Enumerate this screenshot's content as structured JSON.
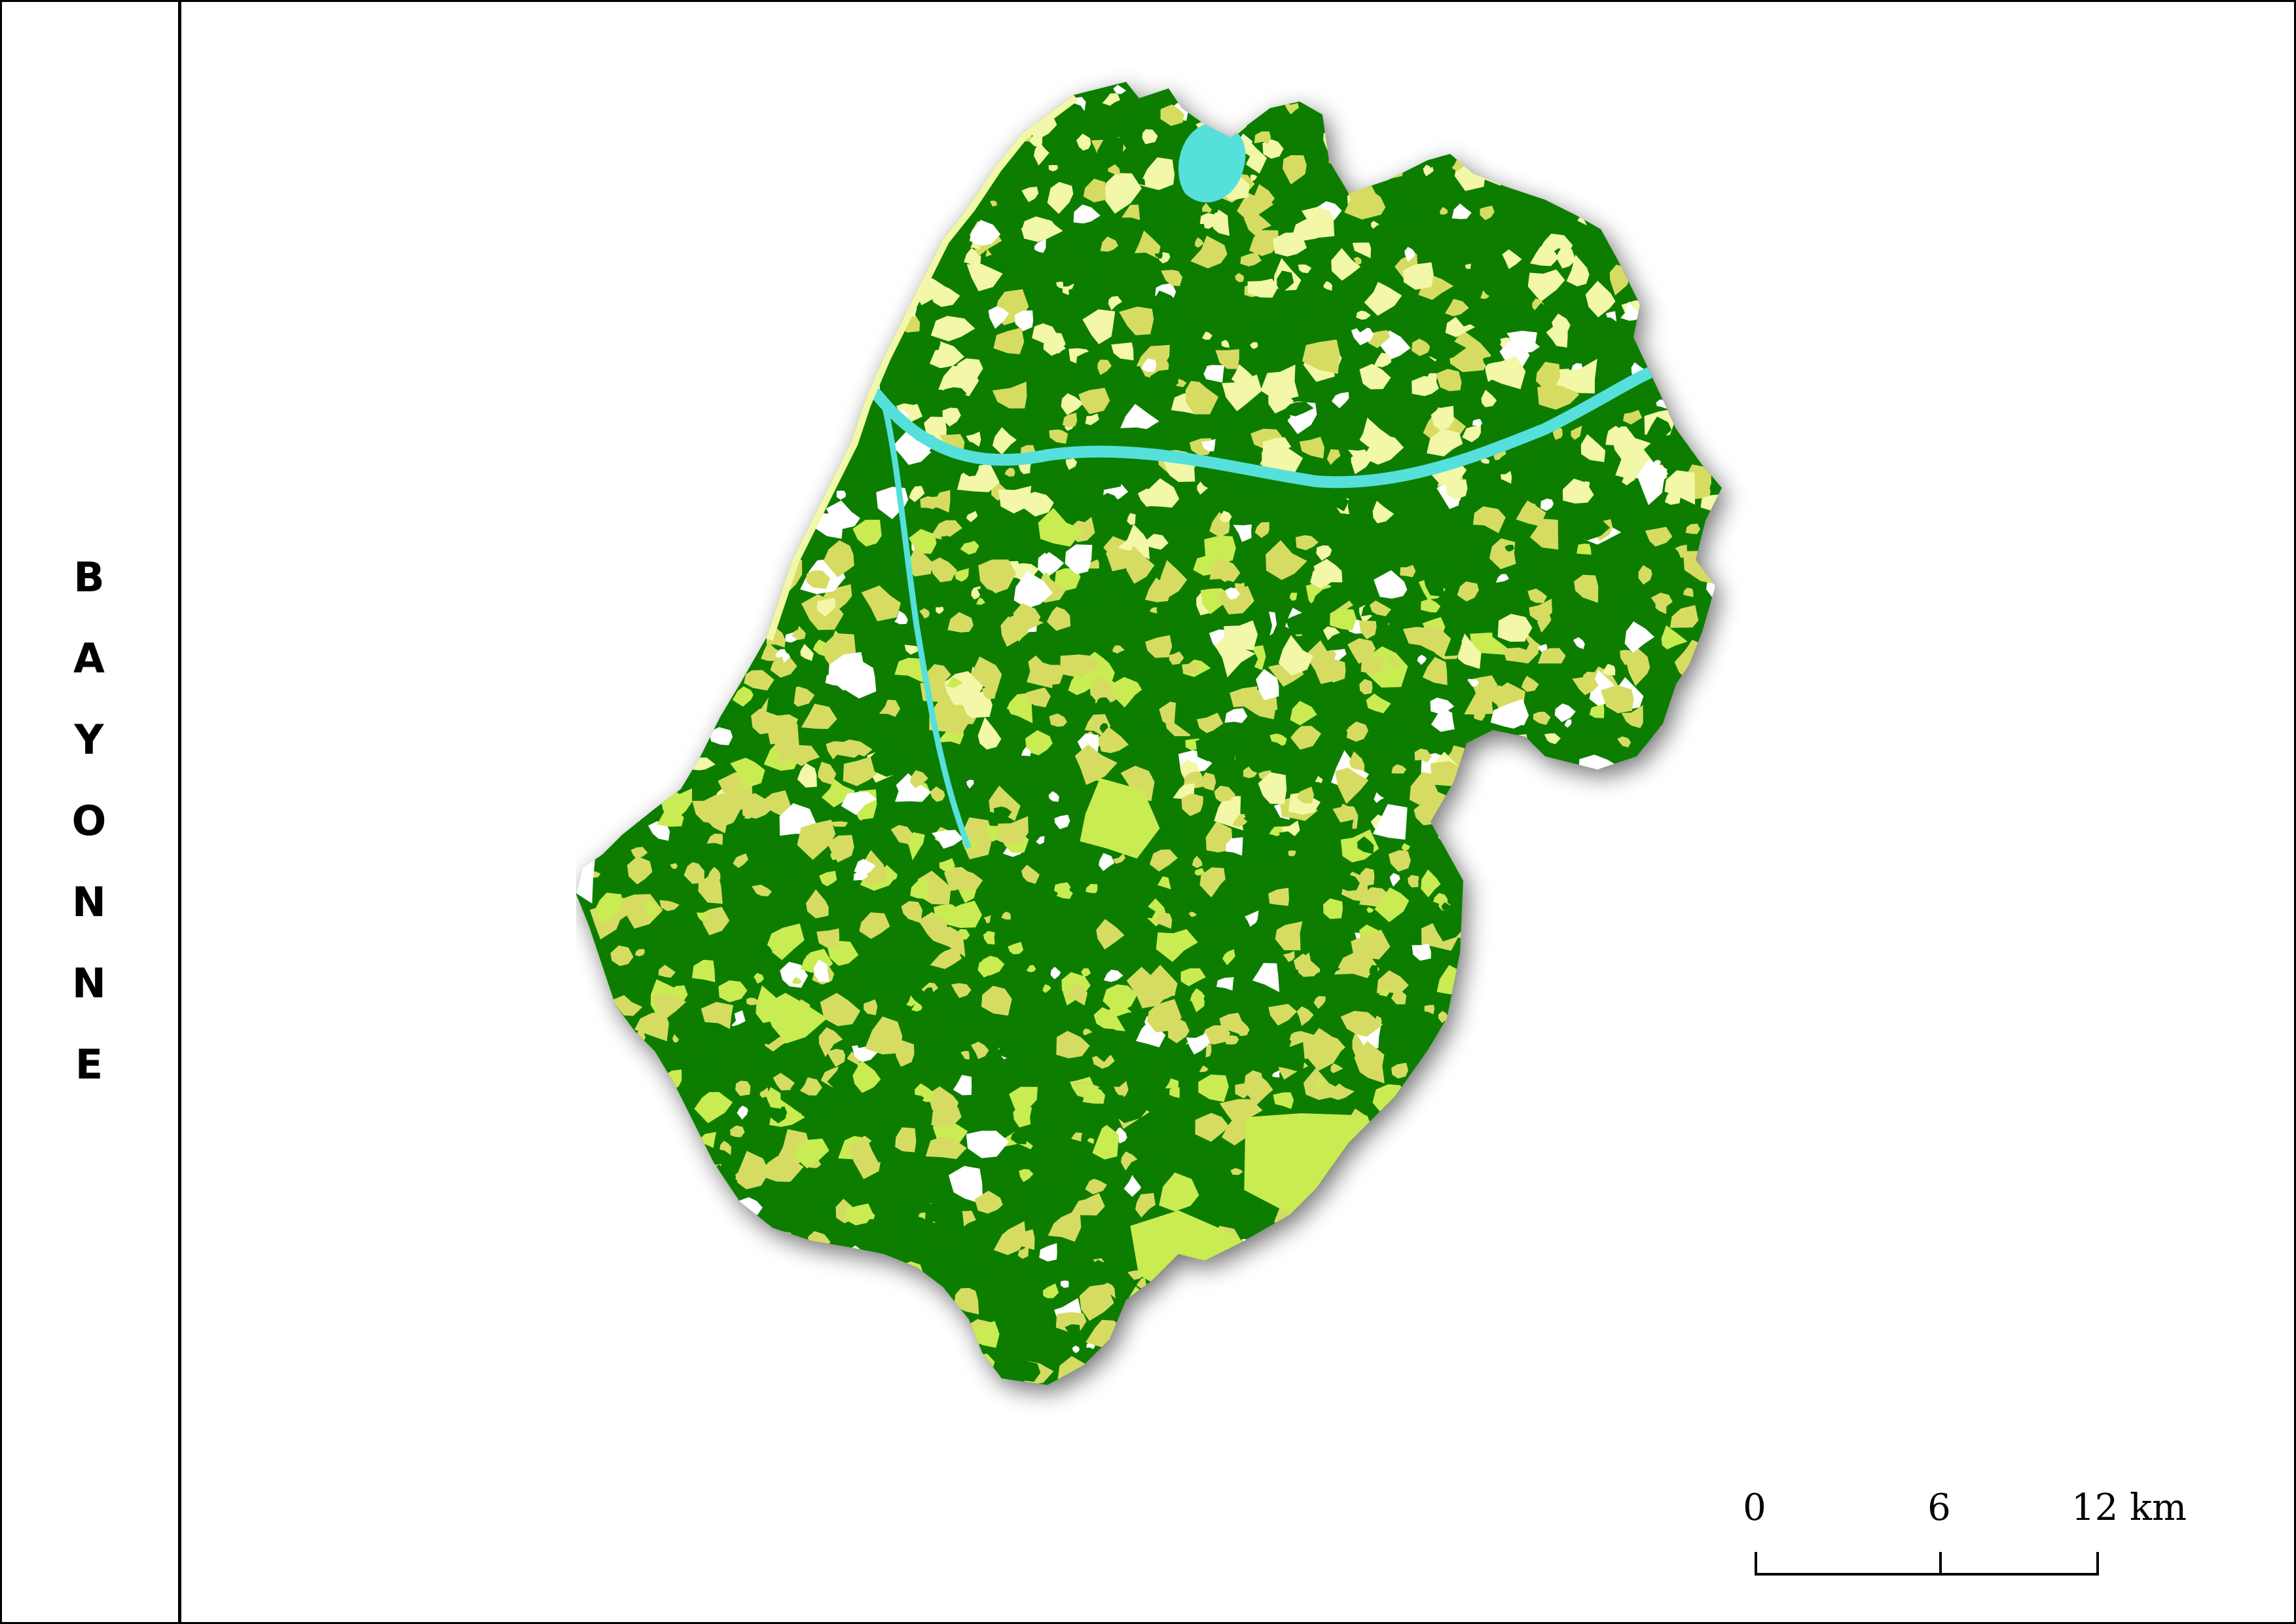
{
  "title_letters": [
    "B",
    "A",
    "Y",
    "O",
    "N",
    "N",
    "E"
  ],
  "legend_colors": {
    "forest": "#0a7d00",
    "agriculture": "#d6dc62",
    "grassland": "#c9ec52",
    "meadow": "#f3f7a8",
    "urban": "#ffffff",
    "water": "#55e0dc"
  },
  "scale": {
    "labels": [
      "0",
      "6",
      "12 km"
    ]
  }
}
